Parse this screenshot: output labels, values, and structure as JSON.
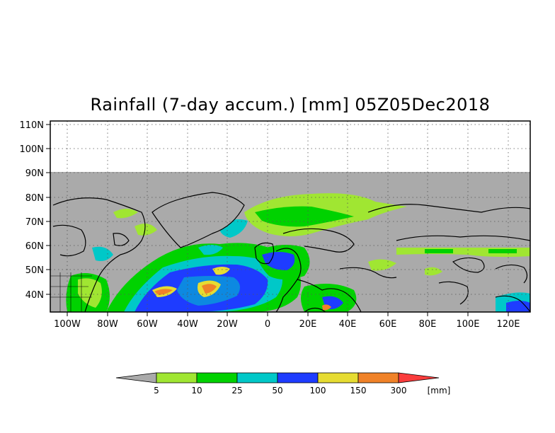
{
  "title": "Rainfall (7-day accum.) [mm] 05Z05Dec2018",
  "map": {
    "lat_labels": [
      "110N",
      "100N",
      "90N",
      "80N",
      "70N",
      "60N",
      "50N",
      "40N"
    ],
    "lon_labels": [
      "100W",
      "80W",
      "60W",
      "40W",
      "20W",
      "0",
      "20E",
      "40E",
      "60E",
      "80E",
      "100E",
      "120E"
    ],
    "lat_range": [
      33,
      110
    ],
    "lon_range": [
      -110,
      130
    ],
    "no_data_above_lat": 90,
    "gridlines": true
  },
  "colorbar": {
    "unit": "[mm]",
    "labels": [
      "5",
      "10",
      "25",
      "50",
      "100",
      "150",
      "300"
    ],
    "colors": [
      "#aaaaaa",
      "#a0e632",
      "#00d200",
      "#00c8c8",
      "#1e3cff",
      "#e6dc32",
      "#f08228",
      "#fa3c3c"
    ]
  },
  "colors": {
    "land_gray": "#aaaaaa",
    "light_green": "#a0e632",
    "green": "#00d200",
    "cyan": "#00c8c8",
    "blue": "#1e3cff",
    "yellow": "#e6dc32",
    "orange": "#f08228",
    "red": "#fa3c3c"
  }
}
